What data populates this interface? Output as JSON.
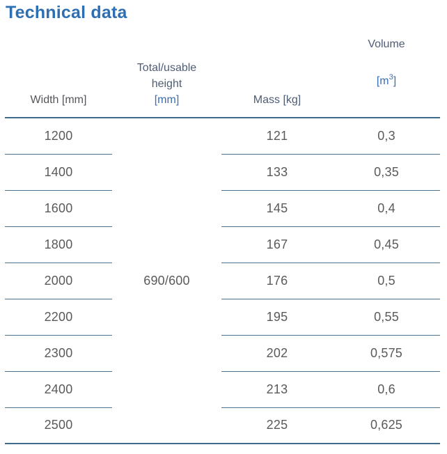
{
  "page": {
    "title": "Technical data"
  },
  "colors": {
    "title": "#2e6fb4",
    "header_gray": "#55565b",
    "header_slate": "#4e5c74",
    "unit_blue": "#3a6fb2",
    "separator_line": "#4a7391",
    "strong_line": "#3d6b89",
    "cell_text": "#595a5c",
    "background": "#ffffff"
  },
  "table": {
    "columns": {
      "width": {
        "label": "Width [mm]"
      },
      "height": {
        "label_line1": "Total/usable",
        "label_line2": "height",
        "unit": "[mm]"
      },
      "mass": {
        "label": "Mass [kg]"
      },
      "volume": {
        "label": "Volume",
        "unit_open": "[m",
        "unit_sup": "3",
        "unit_close": "]"
      }
    },
    "merged_height_value": "690/600",
    "rows": [
      {
        "width": "1200",
        "mass": "121",
        "volume": "0,3"
      },
      {
        "width": "1400",
        "mass": "133",
        "volume": "0,35"
      },
      {
        "width": "1600",
        "mass": "145",
        "volume": "0,4"
      },
      {
        "width": "1800",
        "mass": "167",
        "volume": "0,45"
      },
      {
        "width": "2000",
        "mass": "176",
        "volume": "0,5"
      },
      {
        "width": "2200",
        "mass": "195",
        "volume": "0,55"
      },
      {
        "width": "2300",
        "mass": "202",
        "volume": "0,575"
      },
      {
        "width": "2400",
        "mass": "213",
        "volume": "0,6"
      },
      {
        "width": "2500",
        "mass": "225",
        "volume": "0,625"
      }
    ]
  }
}
